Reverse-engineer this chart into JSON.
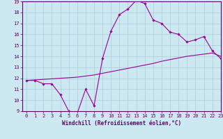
{
  "xlabel": "Windchill (Refroidissement éolien,°C)",
  "x_values": [
    0,
    1,
    2,
    3,
    4,
    5,
    6,
    7,
    8,
    9,
    10,
    11,
    12,
    13,
    14,
    15,
    16,
    17,
    18,
    19,
    20,
    21,
    22,
    23
  ],
  "line1_y": [
    11.8,
    11.8,
    11.5,
    11.5,
    10.5,
    9.0,
    8.8,
    11.0,
    9.5,
    13.8,
    16.3,
    17.8,
    18.3,
    19.1,
    18.8,
    17.3,
    17.0,
    16.2,
    16.0,
    15.3,
    15.5,
    15.8,
    14.5,
    13.8
  ],
  "line2_y": [
    11.8,
    11.85,
    11.9,
    11.95,
    12.0,
    12.05,
    12.1,
    12.2,
    12.3,
    12.45,
    12.6,
    12.75,
    12.9,
    13.05,
    13.2,
    13.35,
    13.55,
    13.7,
    13.85,
    14.0,
    14.1,
    14.2,
    14.3,
    14.0
  ],
  "line_color": "#990099",
  "marker": "D",
  "marker_size": 1.8,
  "bg_color": "#cce8f0",
  "grid_color": "#aaccdd",
  "ylim": [
    9,
    19
  ],
  "xlim": [
    -0.5,
    23
  ],
  "yticks": [
    9,
    10,
    11,
    12,
    13,
    14,
    15,
    16,
    17,
    18,
    19
  ],
  "xticks": [
    0,
    1,
    2,
    3,
    4,
    5,
    6,
    7,
    8,
    9,
    10,
    11,
    12,
    13,
    14,
    15,
    16,
    17,
    18,
    19,
    20,
    21,
    22,
    23
  ],
  "tick_fontsize": 5.0,
  "xlabel_fontsize": 5.5,
  "spine_color": "#660066"
}
